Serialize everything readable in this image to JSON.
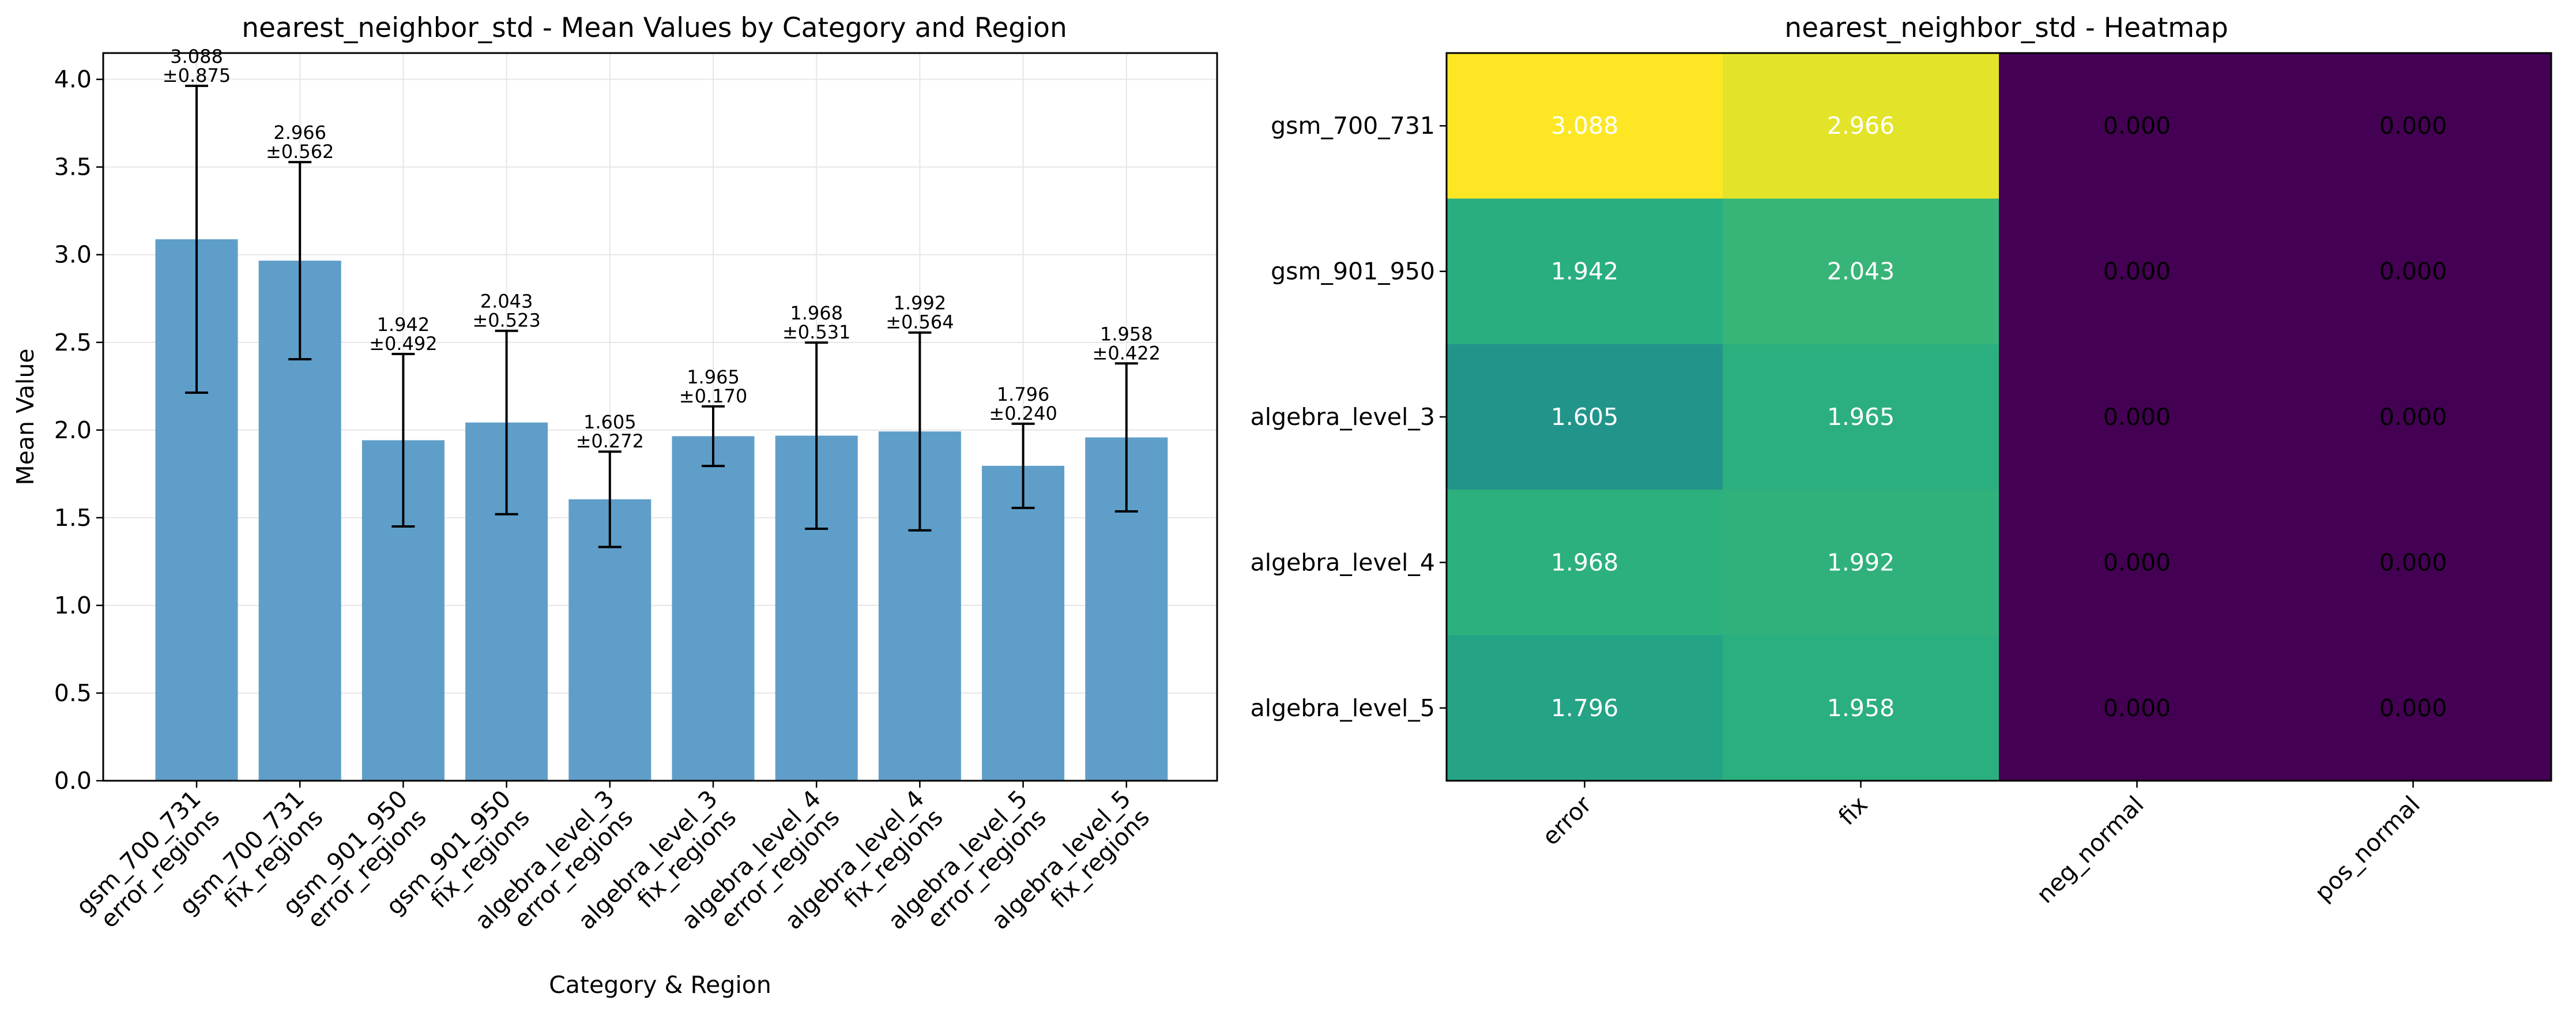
{
  "chart_data": [
    {
      "type": "bar",
      "title": "nearest_neighbor_std - Mean Values by Category and Region",
      "xlabel": "Category & Region",
      "ylabel": "Mean Value",
      "ylim": [
        0,
        4.15
      ],
      "yticks": [
        "0.0",
        "0.5",
        "1.0",
        "1.5",
        "2.0",
        "2.5",
        "3.0",
        "3.5",
        "4.0"
      ],
      "grid": true,
      "categories": [
        [
          "gsm_700_731",
          "error_regions"
        ],
        [
          "gsm_700_731",
          "fix_regions"
        ],
        [
          "gsm_901_950",
          "error_regions"
        ],
        [
          "gsm_901_950",
          "fix_regions"
        ],
        [
          "algebra_level_3",
          "error_regions"
        ],
        [
          "algebra_level_3",
          "fix_regions"
        ],
        [
          "algebra_level_4",
          "error_regions"
        ],
        [
          "algebra_level_4",
          "fix_regions"
        ],
        [
          "algebra_level_5",
          "error_regions"
        ],
        [
          "algebra_level_5",
          "fix_regions"
        ]
      ],
      "values": [
        3.088,
        2.966,
        1.942,
        2.043,
        1.605,
        1.965,
        1.968,
        1.992,
        1.796,
        1.958
      ],
      "errors": [
        0.875,
        0.562,
        0.492,
        0.523,
        0.272,
        0.17,
        0.531,
        0.564,
        0.24,
        0.422
      ],
      "value_labels": [
        "3.088",
        "2.966",
        "1.942",
        "2.043",
        "1.605",
        "1.965",
        "1.968",
        "1.992",
        "1.796",
        "1.958"
      ],
      "error_labels": [
        "±0.875",
        "±0.562",
        "±0.492",
        "±0.523",
        "±0.272",
        "±0.170",
        "±0.531",
        "±0.564",
        "±0.240",
        "±0.422"
      ],
      "bar_color": "#5f9ec9"
    },
    {
      "type": "heatmap",
      "title": "nearest_neighbor_std - Heatmap",
      "rows": [
        "gsm_700_731",
        "gsm_901_950",
        "algebra_level_3",
        "algebra_level_4",
        "algebra_level_5"
      ],
      "columns": [
        "error",
        "fix",
        "neg_normal",
        "pos_normal"
      ],
      "values": [
        [
          3.088,
          2.966,
          0.0,
          0.0
        ],
        [
          1.942,
          2.043,
          0.0,
          0.0
        ],
        [
          1.605,
          1.965,
          0.0,
          0.0
        ],
        [
          1.968,
          1.992,
          0.0,
          0.0
        ],
        [
          1.796,
          1.958,
          0.0,
          0.0
        ]
      ],
      "cell_labels": [
        [
          "3.088",
          "2.966",
          "0.000",
          "0.000"
        ],
        [
          "1.942",
          "2.043",
          "0.000",
          "0.000"
        ],
        [
          "1.605",
          "1.965",
          "0.000",
          "0.000"
        ],
        [
          "1.968",
          "1.992",
          "0.000",
          "0.000"
        ],
        [
          "1.796",
          "1.958",
          "0.000",
          "0.000"
        ]
      ],
      "colormap": "viridis"
    }
  ]
}
